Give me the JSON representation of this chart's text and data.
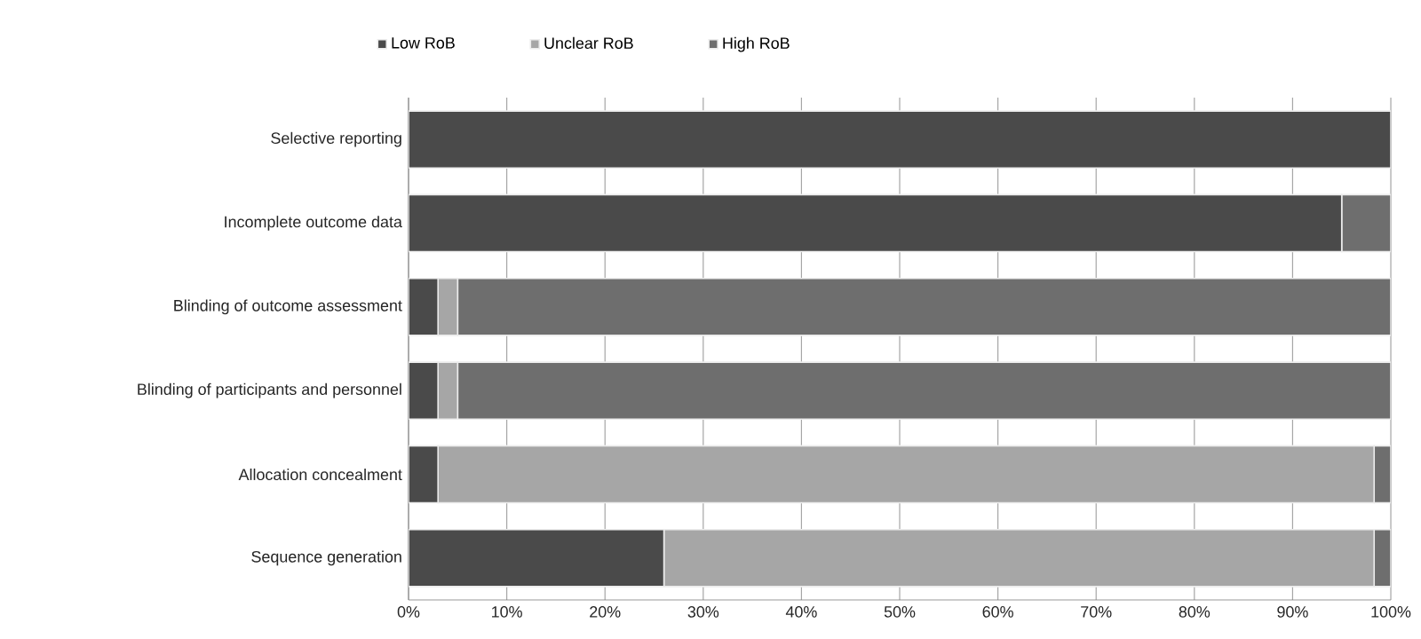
{
  "chart_data": {
    "type": "bar",
    "orientation": "horizontal",
    "stacked": true,
    "categories": [
      "Selective reporting",
      "Incomplete outcome data",
      "Blinding of outcome assessment",
      "Blinding of participants and personnel",
      "Allocation concealment",
      "Sequence generation"
    ],
    "series": [
      {
        "name": "Low RoB",
        "color": "#4a4a4a",
        "values": [
          100,
          95,
          3,
          3,
          3,
          26
        ]
      },
      {
        "name": "Unclear RoB",
        "color": "#a6a6a6",
        "values": [
          0,
          0,
          2,
          2,
          95.3,
          72.3
        ]
      },
      {
        "name": "High RoB",
        "color": "#6e6e6e",
        "values": [
          0,
          5,
          95,
          95,
          1.7,
          1.7
        ]
      }
    ],
    "xlim": [
      0,
      100
    ],
    "xticks": [
      {
        "value": 0,
        "label": "0%"
      },
      {
        "value": 10,
        "label": "10%"
      },
      {
        "value": 20,
        "label": "20%"
      },
      {
        "value": 30,
        "label": "30%"
      },
      {
        "value": 40,
        "label": "40%"
      },
      {
        "value": 50,
        "label": "50%"
      },
      {
        "value": 60,
        "label": "60%"
      },
      {
        "value": 70,
        "label": "70%"
      },
      {
        "value": 80,
        "label": "80%"
      },
      {
        "value": 90,
        "label": "90%"
      },
      {
        "value": 100,
        "label": "100%"
      }
    ],
    "grid": "x",
    "legend": "top"
  }
}
